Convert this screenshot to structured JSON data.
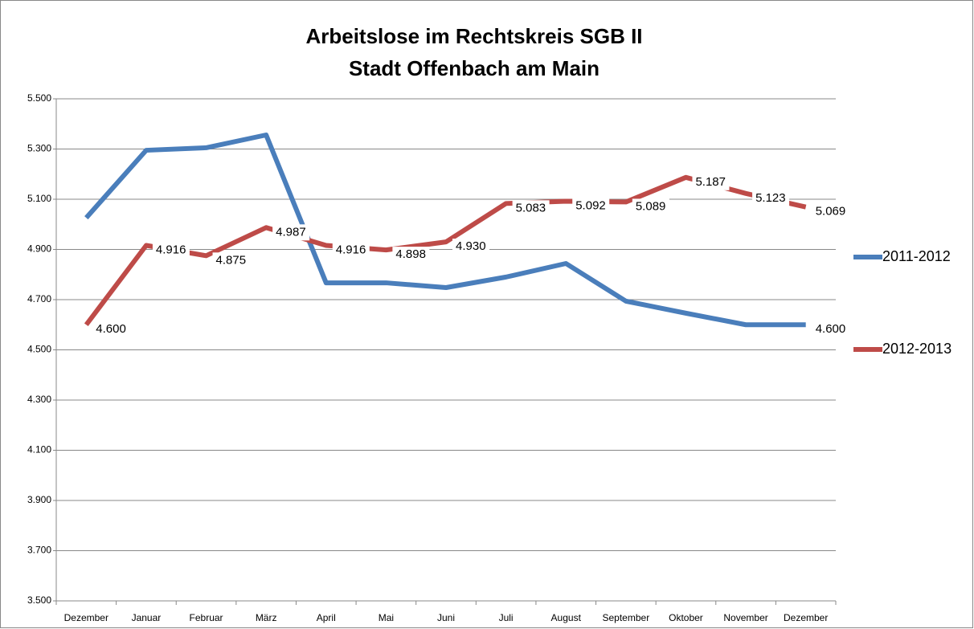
{
  "chart_data": {
    "type": "line",
    "title": [
      "Arbeitslose im Rechtskreis SGB II",
      "Stadt Offenbach am Main"
    ],
    "categories": [
      "Dezember",
      "Januar",
      "Februar",
      "März",
      "April",
      "Mai",
      "Juni",
      "Juli",
      "August",
      "September",
      "Oktober",
      "November",
      "Dezember"
    ],
    "series": [
      {
        "name": "2011-2012",
        "color": "#4a7ebb",
        "values": [
          5026,
          5295,
          5305,
          5356,
          4767,
          4767,
          4748,
          4790,
          4844,
          4694,
          4646,
          4600,
          4600
        ],
        "value_labels": [
          null,
          null,
          null,
          null,
          null,
          null,
          null,
          null,
          null,
          null,
          null,
          null,
          "4.600"
        ]
      },
      {
        "name": "2012-2013",
        "color": "#be4b48",
        "values": [
          4600,
          4916,
          4875,
          4987,
          4916,
          4898,
          4930,
          5083,
          5092,
          5089,
          5187,
          5123,
          5069
        ],
        "value_labels": [
          "4.600",
          "4.916",
          "4.875",
          "4.987",
          "4.916",
          "4.898",
          "4.930",
          "5.083",
          "5.092",
          "5.089",
          "5.187",
          "5.123",
          "5.069"
        ]
      }
    ],
    "ylim": [
      3500,
      5500
    ],
    "yticks": [
      {
        "value": 3500,
        "label": "3.500"
      },
      {
        "value": 3700,
        "label": "3.700"
      },
      {
        "value": 3900,
        "label": "3.900"
      },
      {
        "value": 4100,
        "label": "4.100"
      },
      {
        "value": 4300,
        "label": "4.300"
      },
      {
        "value": 4500,
        "label": "4.500"
      },
      {
        "value": 4700,
        "label": "4.700"
      },
      {
        "value": 4900,
        "label": "4.900"
      },
      {
        "value": 5100,
        "label": "5.100"
      },
      {
        "value": 5300,
        "label": "5.300"
      },
      {
        "value": 5500,
        "label": "5.500"
      }
    ],
    "grid": true,
    "legend": "right"
  }
}
